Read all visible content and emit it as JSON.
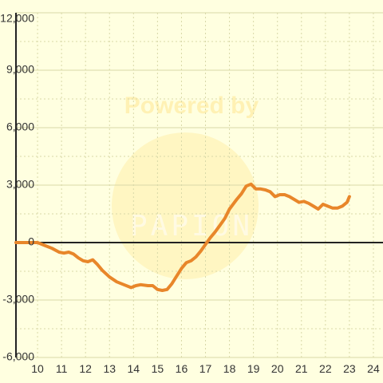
{
  "chart_data": {
    "type": "line",
    "title": "",
    "xlabel": "",
    "ylabel": "",
    "xlim": [
      9.1,
      24.4
    ],
    "ylim": [
      -6000,
      12000
    ],
    "x_ticks": [
      10,
      11,
      12,
      13,
      14,
      15,
      16,
      17,
      18,
      19,
      20,
      21,
      22,
      23,
      24
    ],
    "x_tick_labels": [
      "10",
      "11",
      "12",
      "13",
      "14",
      "15",
      "16",
      "17",
      "18",
      "19",
      "20",
      "21",
      "22",
      "23",
      "24"
    ],
    "y_ticks": [
      12000,
      9000,
      6000,
      3000,
      0,
      -3000,
      -6000
    ],
    "y_tick_labels": [
      "12,000",
      "9,000",
      "6,000",
      "3,000",
      "0",
      "-3,000",
      "-6,000"
    ],
    "grid": true,
    "watermark": "Powered by Papion",
    "colors": {
      "background": "#ffffe0",
      "grid": "#d8d8a8",
      "axis": "#222222",
      "line": "#e8862a",
      "watermark": "#fff0b0"
    },
    "series": [
      {
        "values_x": [
          9.1,
          10.0,
          10.3,
          10.6,
          10.9,
          11.1,
          11.3,
          11.5,
          11.7,
          11.9,
          12.1,
          12.3,
          12.5,
          12.7,
          13.0,
          13.3,
          13.6,
          13.9,
          14.1,
          14.3,
          14.6,
          14.8,
          15.0,
          15.2,
          15.4,
          15.6,
          15.8,
          16.0,
          16.2,
          16.4,
          16.6,
          16.8,
          17.0,
          17.2,
          17.4,
          17.6,
          17.8,
          18.0,
          18.3,
          18.5,
          18.7,
          18.9,
          19.1,
          19.3,
          19.5,
          19.7,
          19.9,
          20.1,
          20.3,
          20.5,
          20.7,
          20.9,
          21.1,
          21.3,
          21.5,
          21.7,
          21.9,
          22.1,
          22.3,
          22.5,
          22.7,
          22.9,
          23.0
        ],
        "values_y": [
          0,
          0,
          -150,
          -300,
          -500,
          -550,
          -500,
          -600,
          -800,
          -950,
          -1000,
          -900,
          -1150,
          -1450,
          -1800,
          -2050,
          -2200,
          -2350,
          -2250,
          -2200,
          -2250,
          -2250,
          -2450,
          -2500,
          -2450,
          -2150,
          -1750,
          -1350,
          -1050,
          -950,
          -750,
          -450,
          -100,
          250,
          550,
          900,
          1250,
          1750,
          2250,
          2550,
          2950,
          3050,
          2800,
          2800,
          2750,
          2650,
          2400,
          2500,
          2500,
          2400,
          2250,
          2100,
          2150,
          2050,
          1900,
          1750,
          2000,
          1900,
          1800,
          1800,
          1900,
          2100,
          2400
        ]
      }
    ]
  }
}
